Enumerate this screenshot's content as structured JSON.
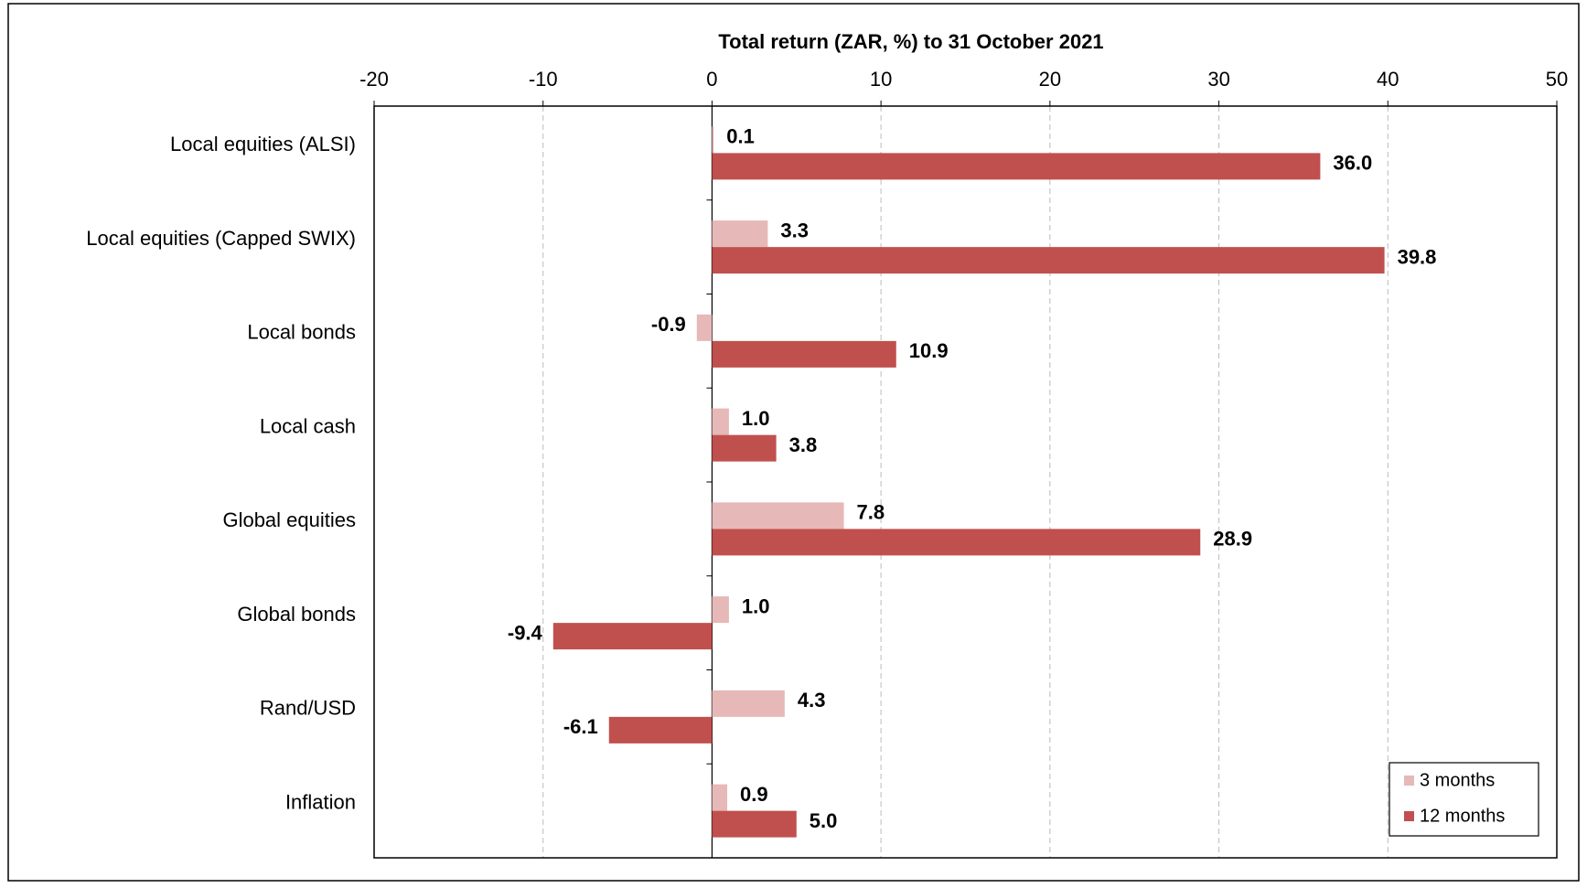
{
  "chart_data": {
    "type": "bar",
    "orientation": "horizontal",
    "title": "Total return (ZAR,  %) to 31 October 2021",
    "categories": [
      "Local equities (ALSI)",
      "Local equities (Capped SWIX)",
      "Local bonds",
      "Local cash",
      "Global equities",
      "Global bonds",
      "Rand/USD",
      "Inflation"
    ],
    "series": [
      {
        "name": "3 months",
        "color": "#e6b8b7",
        "values": [
          0.1,
          3.3,
          -0.9,
          1.0,
          7.8,
          1.0,
          4.3,
          0.9
        ],
        "value_labels": [
          "0.1",
          "3.3",
          "-0.9",
          "1.0",
          "7.8",
          "1.0",
          "4.3",
          "0.9"
        ]
      },
      {
        "name": "12 months",
        "color": "#c0504d",
        "values": [
          36.0,
          39.8,
          10.9,
          3.8,
          28.9,
          -9.4,
          -6.1,
          5.0
        ],
        "value_labels": [
          "36.0",
          "39.8",
          "10.9",
          "3.8",
          "28.9",
          "-9.4",
          "-6.1",
          "5.0"
        ]
      }
    ],
    "xlim": [
      -20,
      50
    ],
    "xticks": [
      -20,
      -10,
      0,
      10,
      20,
      30,
      40,
      50
    ],
    "grid": true,
    "legend": "lower right"
  }
}
